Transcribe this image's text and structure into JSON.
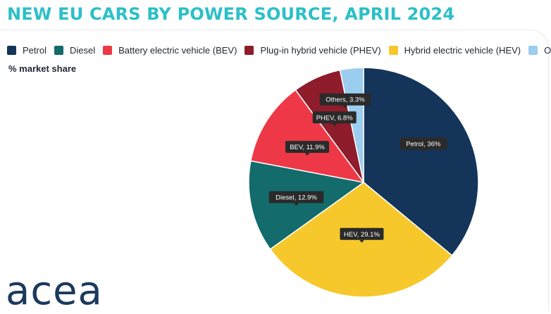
{
  "page": {
    "title": "NEW EU CARS BY POWER SOURCE, APRIL 2024",
    "subtitle": "% market share",
    "logo": "acea"
  },
  "legend": [
    {
      "label": "Petrol",
      "color": "#14345a"
    },
    {
      "label": "Diesel",
      "color": "#136b6b"
    },
    {
      "label": "Battery electric vehicle (BEV)",
      "color": "#ef3847"
    },
    {
      "label": "Plug-in hybrid vehicle (PHEV)",
      "color": "#8e1c2b"
    },
    {
      "label": "Hybrid electric vehicle (HEV)",
      "color": "#f7c82b"
    },
    {
      "label": "Others",
      "color": "#9bcdee"
    }
  ],
  "chart_data": {
    "type": "pie",
    "title": "NEW EU CARS BY POWER SOURCE, APRIL 2024",
    "subtitle": "% market share",
    "unit": "%",
    "slices": [
      {
        "name": "Petrol",
        "value": 36,
        "label": "Petrol, 36%",
        "color": "#14345a"
      },
      {
        "name": "HEV",
        "value": 29.1,
        "label": "HEV, 29.1%",
        "color": "#f7c82b"
      },
      {
        "name": "Diesel",
        "value": 12.9,
        "label": "Diesel, 12.9%",
        "color": "#136b6b"
      },
      {
        "name": "BEV",
        "value": 11.9,
        "label": "BEV, 11.9%",
        "color": "#ef3847"
      },
      {
        "name": "PHEV",
        "value": 6.8,
        "label": "PHEV, 6.8%",
        "color": "#8e1c2b"
      },
      {
        "name": "Others",
        "value": 3.3,
        "label": "Others, 3.3%",
        "color": "#9bcdee"
      }
    ]
  }
}
